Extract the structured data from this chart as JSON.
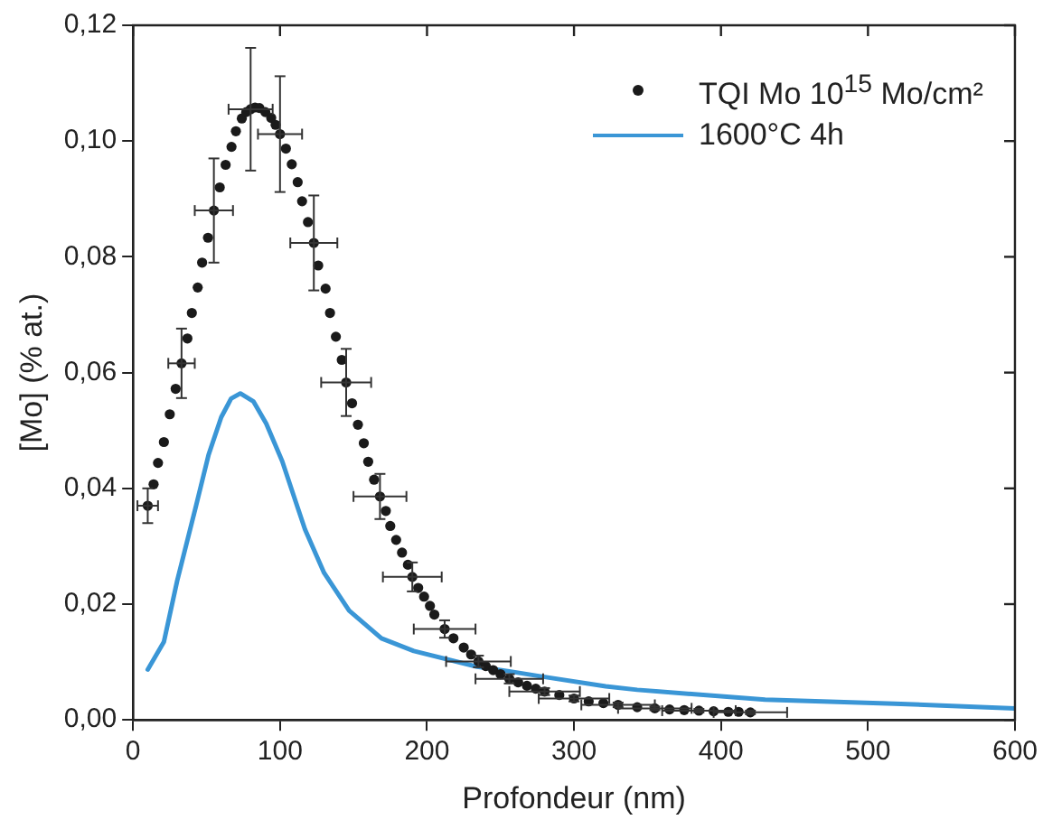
{
  "chart_data": {
    "type": "scatter",
    "xlabel": "Profondeur (nm)",
    "ylabel": "[Mo] (% at.)",
    "xlim": [
      0,
      600
    ],
    "xticks": [
      0,
      100,
      200,
      300,
      400,
      500,
      600
    ],
    "ylim": [
      0,
      0.12
    ],
    "yticks": [
      {
        "value": 0,
        "label": "0,00"
      },
      {
        "value": 0.02,
        "label": "0,02"
      },
      {
        "value": 0.04,
        "label": "0,04"
      },
      {
        "value": 0.06,
        "label": "0,06"
      },
      {
        "value": 0.08,
        "label": "0,08"
      },
      {
        "value": 0.1,
        "label": "0,10"
      },
      {
        "value": 0.12,
        "label": "0,12"
      }
    ],
    "grid": false,
    "legend": "top right",
    "series": [
      {
        "name": "TQI Mo 10$^{15}$ Mo/cm²",
        "type": "scatter",
        "marker": "circle",
        "color": "#1a1a1a",
        "x": [
          10,
          14,
          17,
          21,
          25,
          29,
          33,
          37,
          40,
          44,
          47,
          51,
          55,
          59,
          63,
          67,
          70,
          74,
          77,
          80,
          83,
          86,
          90,
          94,
          97,
          100,
          104,
          108,
          112,
          115,
          119,
          123,
          126,
          131,
          134,
          138,
          142,
          145,
          149,
          153,
          157,
          160,
          164,
          168,
          172,
          175,
          179,
          183,
          187,
          190,
          194,
          198,
          202,
          205,
          212,
          218,
          225,
          230,
          235,
          240,
          245,
          250,
          256,
          262,
          268,
          274,
          280,
          290,
          300,
          310,
          320,
          330,
          343,
          355,
          365,
          375,
          385,
          395,
          405,
          412,
          420
        ],
        "values": [
          0.037,
          0.0407,
          0.0444,
          0.048,
          0.0528,
          0.0572,
          0.0616,
          0.0659,
          0.0703,
          0.0747,
          0.079,
          0.0833,
          0.088,
          0.092,
          0.0959,
          0.099,
          0.1017,
          0.1039,
          0.105,
          0.1055,
          0.1058,
          0.1057,
          0.105,
          0.104,
          0.1028,
          0.1012,
          0.0987,
          0.096,
          0.0929,
          0.0896,
          0.086,
          0.0824,
          0.0785,
          0.0745,
          0.0703,
          0.0662,
          0.0622,
          0.0583,
          0.0547,
          0.051,
          0.0478,
          0.0446,
          0.0415,
          0.0386,
          0.0361,
          0.0335,
          0.0311,
          0.0289,
          0.0268,
          0.0247,
          0.0228,
          0.0213,
          0.0197,
          0.0182,
          0.0157,
          0.0141,
          0.0125,
          0.0113,
          0.0101,
          0.0093,
          0.0086,
          0.0079,
          0.0071,
          0.0065,
          0.0059,
          0.0054,
          0.0049,
          0.0043,
          0.0037,
          0.0032,
          0.0029,
          0.0026,
          0.0022,
          0.002,
          0.0018,
          0.0017,
          0.0016,
          0.0015,
          0.0014,
          0.0014,
          0.0013
        ],
        "errors": [
          0.003,
          null,
          null,
          null,
          null,
          null,
          0.006,
          null,
          null,
          null,
          null,
          null,
          0.009,
          null,
          null,
          null,
          null,
          null,
          null,
          0.0106,
          null,
          null,
          null,
          null,
          null,
          0.01,
          null,
          null,
          null,
          null,
          null,
          0.0082,
          null,
          null,
          null,
          null,
          null,
          0.0058,
          null,
          null,
          null,
          null,
          null,
          0.0039,
          null,
          null,
          null,
          null,
          null,
          0.0025,
          null,
          null,
          null,
          null,
          0.0015,
          null,
          null,
          null,
          0.001,
          null,
          null,
          null,
          0.0008,
          null,
          null,
          null,
          0.0006,
          null,
          0.0005,
          null,
          null,
          0.0004,
          null,
          0.0003,
          null,
          null,
          0.0003,
          null,
          null,
          null,
          0.0003
        ],
        "xerrors": [
          7,
          null,
          null,
          null,
          null,
          null,
          9,
          null,
          null,
          null,
          null,
          null,
          13,
          null,
          null,
          null,
          null,
          null,
          null,
          15,
          null,
          null,
          null,
          null,
          null,
          15,
          null,
          null,
          null,
          null,
          null,
          16,
          null,
          null,
          null,
          null,
          null,
          17,
          null,
          null,
          null,
          null,
          null,
          18,
          null,
          null,
          null,
          null,
          null,
          20,
          null,
          null,
          null,
          null,
          21,
          null,
          null,
          null,
          22,
          null,
          null,
          null,
          23,
          null,
          null,
          null,
          24,
          null,
          24,
          null,
          null,
          25,
          null,
          25,
          null,
          null,
          25,
          null,
          null,
          null,
          25
        ]
      },
      {
        "name": "1600°C 4h",
        "type": "line",
        "marker": "none",
        "color": "#3a96d6",
        "line_style": "solid",
        "x": [
          10,
          21,
          30,
          42.6,
          51.4,
          60,
          66.7,
          73,
          82,
          90.6,
          101.5,
          112,
          117,
          130,
          147,
          169,
          191,
          234,
          256,
          278,
          321.6,
          343,
          430,
          518,
          600
        ],
        "values": [
          0.0087,
          0.0135,
          0.024,
          0.0367,
          0.0458,
          0.0523,
          0.0555,
          0.0564,
          0.055,
          0.0512,
          0.0447,
          0.0367,
          0.0329,
          0.0254,
          0.0189,
          0.0141,
          0.0119,
          0.0092,
          0.0084,
          0.0075,
          0.0058,
          0.0052,
          0.0035,
          0.0028,
          0.002
        ]
      }
    ]
  }
}
